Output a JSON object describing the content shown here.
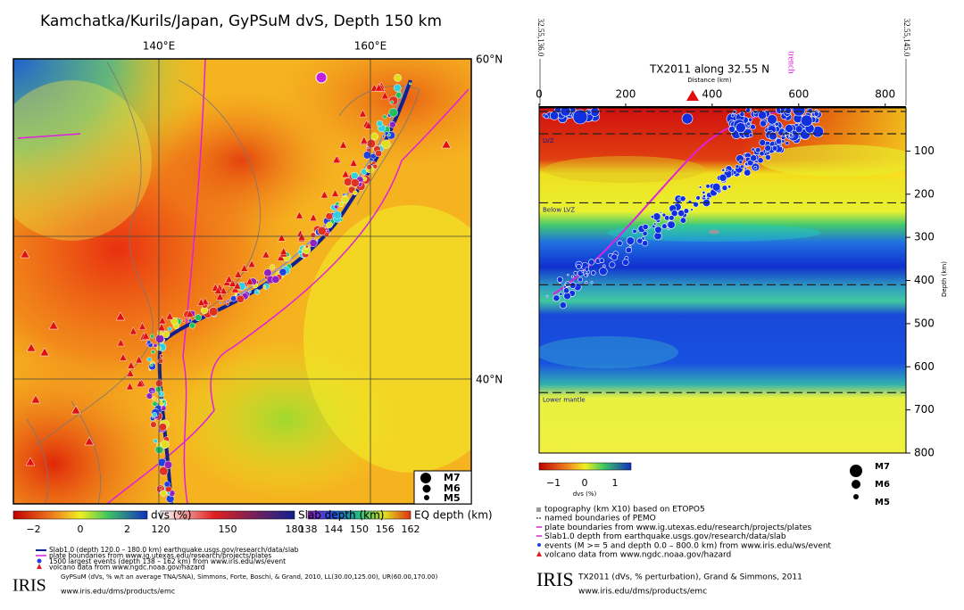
{
  "left": {
    "title": "Kamchatka/Kurils/Japan, GyPSuM dvS, Depth 150 km",
    "lon_labels": [
      "140°E",
      "160°E"
    ],
    "lat_labels": [
      "60°N",
      "40°N"
    ],
    "legend": [
      "M7",
      "M6",
      "M5"
    ],
    "colorbars": [
      {
        "label": "dvs (%)",
        "ticks": [
          "−2",
          "0",
          "2"
        ]
      },
      {
        "label": "Slab depth (km)",
        "ticks": [
          "120",
          "150",
          "180"
        ]
      },
      {
        "label": "EQ depth (km)",
        "ticks": [
          "138",
          "144",
          "150",
          "156",
          "162"
        ]
      }
    ],
    "notes": [
      "Slab1.0 (depth 120.0 – 180.0 km) earthquake.usgs.gov/research/data/slab",
      "plate boundaries from www.ig.utexas.edu/research/projects/plates",
      "1500 largest events (depth 138 – 162 km) from www.iris.edu/ws/event",
      "volcano data from www.ngdc.noaa.gov/hazard"
    ],
    "logo": "IRIS",
    "citation": "GyPSuM (dVs, % w/t an average TNA/SNA), Simmons, Forte, Boschi, & Grand, 2010, LL(30.00,125.00), UR(60.00,170.00)",
    "url": "www.iris.edu/dms/products/emc"
  },
  "right": {
    "title": "TX2011 along 32.55 N",
    "start_label": "32.55,136.0",
    "end_label": "32.55,145.0",
    "trench_label": "trench",
    "xlabel": "Distance (km)",
    "ylabel": "Depth (km)",
    "xlim": [
      0,
      848
    ],
    "xticks": [
      0,
      200,
      400,
      600,
      800
    ],
    "ylim": [
      0,
      800
    ],
    "yticks": [
      100,
      200,
      300,
      400,
      500,
      600,
      700,
      800
    ],
    "boundaries": [
      {
        "label": "LVZ",
        "depth": 60
      },
      {
        "label": "Below LVZ",
        "depth": 220
      },
      {
        "label": "",
        "depth": 410
      },
      {
        "label": "Lower mantle",
        "depth": 660
      }
    ],
    "colorbar": {
      "label": "dvs (%)",
      "ticks": [
        "−1",
        "0",
        "1"
      ]
    },
    "legend": [
      "M7",
      "M6",
      "M5"
    ],
    "notes": [
      "topography (km X10) based on ETOPO5",
      "named boundaries of PEMO",
      "plate boundaries from www.ig.utexas.edu/research/projects/plates",
      "Slab1.0 depth from earthquake.usgs.gov/research/data/slab",
      "events (M >= 5 and depth 0.0 – 800.0 km) from www.iris.edu/ws/event",
      "volcano data from www.ngdc.noaa.gov/hazard"
    ],
    "logo": "IRIS",
    "citation": "TX2011 (dVs, % perturbation), Grand & Simmons, 2011",
    "url": "www.iris.edu/dms/products/emc"
  }
}
